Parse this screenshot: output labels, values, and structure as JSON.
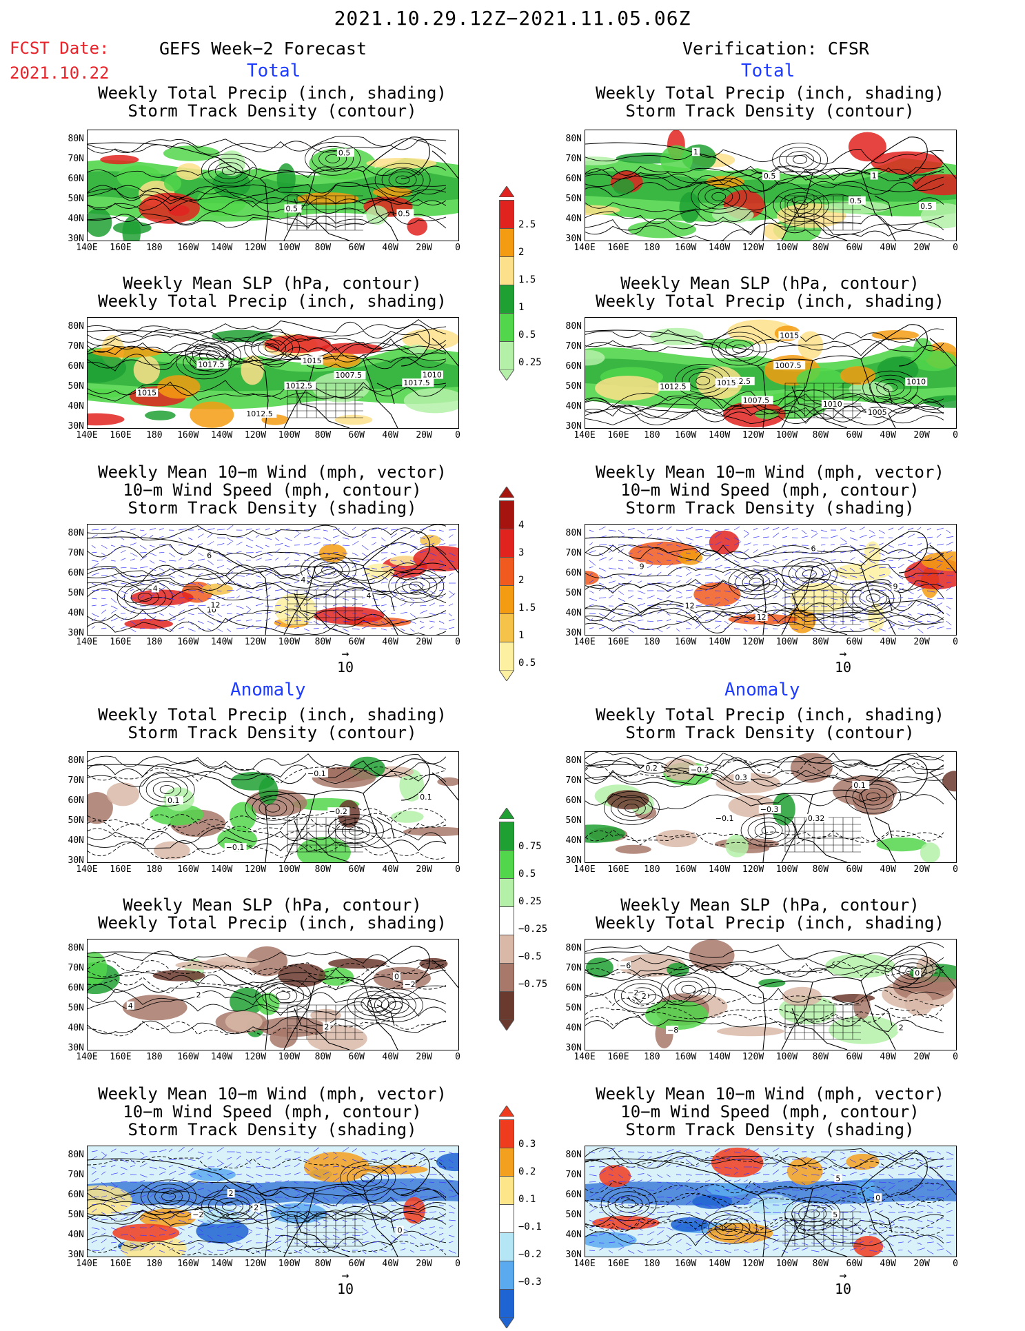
{
  "header": {
    "main_title": "2021.10.29.12Z−2021.11.05.06Z",
    "fcst_label": "FCST Date:",
    "fcst_date": "2021.10.22",
    "left_title": "GEFS Week−2 Forecast",
    "right_title": "Verification: CFSR"
  },
  "sections": {
    "total": "Total",
    "anomaly": "Anomaly"
  },
  "panel_titles": {
    "precip_storm": [
      "Weekly Total Precip (inch, shading)",
      "Storm Track Density (contour)"
    ],
    "slp_precip": [
      "Weekly Mean SLP (hPa, contour)",
      "Weekly Total Precip (inch, shading)"
    ],
    "wind_storm": [
      "Weekly Mean 10−m Wind (mph, vector)",
      "10−m Wind Speed (mph, contour)",
      "Storm Track Density (shading)"
    ]
  },
  "axes": {
    "lat_labels": [
      "80N",
      "70N",
      "60N",
      "50N",
      "40N",
      "30N"
    ],
    "lon_labels": [
      "140E",
      "160E",
      "180",
      "160W",
      "140W",
      "120W",
      "100W",
      "80W",
      "60W",
      "40W",
      "20W",
      "0"
    ]
  },
  "vector_ref": "10",
  "colorbars": {
    "precip_total": {
      "labels": [
        "2.5",
        "2",
        "1.5",
        "1",
        "0.5",
        "0.25"
      ],
      "colors": [
        "#e0231e",
        "#f39c12",
        "#fde08a",
        "#1fa032",
        "#52d64b",
        "#b4f0a8"
      ]
    },
    "storm_total": {
      "labels": [
        "4",
        "3",
        "2",
        "1.5",
        "1",
        "0.5"
      ],
      "colors": [
        "#a5140f",
        "#e0231e",
        "#f05a1e",
        "#f39c12",
        "#f5c24a",
        "#fdf0a0"
      ]
    },
    "precip_anom": {
      "labels": [
        "0.75",
        "0.5",
        "0.25",
        "−0.25",
        "−0.5",
        "−0.75"
      ],
      "colors": [
        "#1fa032",
        "#52d64b",
        "#b4f0a8",
        "#ffffff",
        "#d9b8a8",
        "#a8786a",
        "#6b3a2e"
      ]
    },
    "storm_anom": {
      "labels": [
        "0.3",
        "0.2",
        "0.1",
        "−0.1",
        "−0.2",
        "−0.3"
      ],
      "colors": [
        "#f03c1e",
        "#f3a01e",
        "#fde68a",
        "#ffffff",
        "#b4e6f5",
        "#5aaaf0",
        "#1e64d2"
      ]
    }
  },
  "contour_labels": {
    "fcst_total_precip": [
      "0.5",
      "0.5",
      "0.5"
    ],
    "verif_total_precip": [
      "0.5",
      "1",
      "0.5",
      "1",
      "0.5"
    ],
    "fcst_total_slp": [
      "1017.5",
      "1015",
      "1012.5",
      "1010",
      "1012.5",
      "1015",
      "1007.5",
      "1017.5"
    ],
    "verif_total_slp": [
      "1015",
      "1010",
      "1012.5",
      "1012.5",
      "1015",
      "1015",
      "1007.5",
      "1005",
      "1007.5",
      "1010"
    ],
    "fcst_total_wind": [
      "4",
      "10",
      "6",
      "12",
      "4",
      "4"
    ],
    "verif_total_wind": [
      "9",
      "6",
      "12",
      "12",
      "9"
    ],
    "fcst_anom_precip": [
      "−0.1",
      "0.1",
      "0.1",
      "−0.1",
      "−0.2"
    ],
    "verif_anom_precip": [
      "0.32",
      "−0.1",
      "0.2",
      "0.1",
      "−0.3",
      "0.3",
      "−0.2"
    ],
    "fcst_anom_slp": [
      "0",
      "2",
      "4",
      "−2",
      "2"
    ],
    "verif_anom_slp": [
      "−8",
      "−6",
      "0",
      "2",
      "−2",
      "2"
    ],
    "fcst_anom_wind": [
      "2",
      "2",
      "0",
      "−2"
    ],
    "verif_anom_wind": [
      "5",
      "5",
      "0"
    ]
  }
}
